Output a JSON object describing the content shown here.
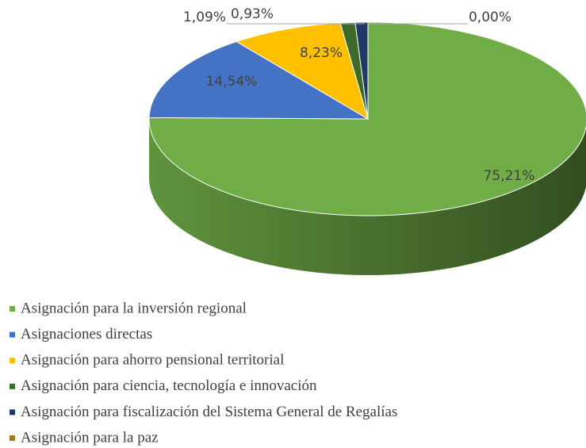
{
  "chart_data": {
    "type": "pie",
    "categories": [
      "Asignación para la inversión regional",
      "Asignaciones directas",
      "Asignación para ahorro pensional territorial",
      "Asignación para ciencia, tecnología e innovación",
      "Asignación para fiscalización del Sistema General de Regalías",
      "Asignación para la paz"
    ],
    "values": [
      75.21,
      14.54,
      8.23,
      1.09,
      0.93,
      0.0
    ],
    "value_labels": [
      "75,21%",
      "14,54%",
      "8,23%",
      "1,09%",
      "0,93%",
      "0,00%"
    ],
    "colors": [
      "#70ad47",
      "#4472c4",
      "#ffc000",
      "#3f6b2a",
      "#203864",
      "#9e7b1c"
    ],
    "legend": "bottom"
  }
}
